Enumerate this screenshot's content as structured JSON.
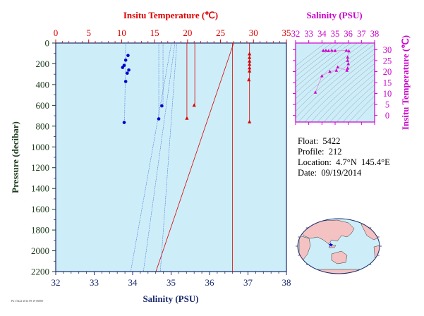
{
  "colors": {
    "plot_bg": "#cdeef8",
    "temperature": "#dd0000",
    "salinity": "#0000cc",
    "ts_axis": "#cc00cc",
    "axis_dark": "#1a2a6c",
    "pressure_label": "#1a3a1a",
    "land": "#f4c2c2",
    "ocean": "#cdeef8"
  },
  "chart_data": [
    {
      "type": "scatter",
      "title": "",
      "xlabel_bottom": "Salinity (PSU)",
      "xlabel_top": "Insitu Temperature (℃)",
      "ylabel": "Pressure (decibar)",
      "salinity_range": [
        32,
        38
      ],
      "temperature_range": [
        0,
        35
      ],
      "pressure_range": [
        0,
        2200
      ],
      "y_inverted": true,
      "grid": false,
      "salinity_ticks": [
        "32",
        "33",
        "34",
        "35",
        "36",
        "37",
        "38"
      ],
      "temperature_ticks": [
        "0",
        "5",
        "10",
        "15",
        "20",
        "25",
        "30",
        "35"
      ],
      "pressure_ticks": [
        "0",
        "200",
        "400",
        "600",
        "800",
        "1000",
        "1200",
        "1400",
        "1600",
        "1800",
        "2000",
        "2200"
      ],
      "series": [
        {
          "variable": "salinity",
          "marker": "circle",
          "points": [
            {
              "x": 33.88,
              "y": 120
            },
            {
              "x": 33.82,
              "y": 165
            },
            {
              "x": 33.78,
              "y": 215
            },
            {
              "x": 33.74,
              "y": 235
            },
            {
              "x": 33.9,
              "y": 260
            },
            {
              "x": 33.86,
              "y": 290
            },
            {
              "x": 33.82,
              "y": 370
            },
            {
              "x": 34.76,
              "y": 605
            },
            {
              "x": 34.68,
              "y": 730
            },
            {
              "x": 33.78,
              "y": 765
            }
          ]
        },
        {
          "variable": "temperature",
          "marker": "triangle",
          "points": [
            {
              "x": 29.4,
              "y": 105
            },
            {
              "x": 29.4,
              "y": 140
            },
            {
              "x": 29.4,
              "y": 175
            },
            {
              "x": 29.4,
              "y": 205
            },
            {
              "x": 29.4,
              "y": 240
            },
            {
              "x": 29.4,
              "y": 270
            },
            {
              "x": 29.3,
              "y": 355
            },
            {
              "x": 21.0,
              "y": 600
            },
            {
              "x": 19.9,
              "y": 725
            },
            {
              "x": 29.4,
              "y": 760
            }
          ]
        }
      ],
      "guide_lines_temperature": [
        {
          "t": [
            27.0,
            15.2
          ],
          "p": [
            0,
            2200
          ]
        },
        {
          "t": [
            26.8,
            26.8
          ],
          "p": [
            0,
            2200
          ]
        },
        {
          "t": [
            21.1,
            21.1
          ],
          "p": [
            0,
            600
          ]
        },
        {
          "t": [
            19.9,
            19.9
          ],
          "p": [
            0,
            725
          ]
        },
        {
          "t": [
            29.4,
            29.4
          ],
          "p": [
            0,
            760
          ]
        }
      ],
      "guide_lines_salinity": [
        {
          "s": [
            35.01,
            33.95
          ],
          "p": [
            0,
            2200
          ]
        },
        {
          "s": [
            35.1,
            34.28
          ],
          "p": [
            0,
            2200
          ]
        },
        {
          "s": [
            35.15,
            34.72
          ],
          "p": [
            0,
            2200
          ]
        },
        {
          "s": [
            34.79,
            34.79
          ],
          "p": [
            0,
            605
          ]
        },
        {
          "s": [
            34.68,
            34.68
          ],
          "p": [
            0,
            730
          ]
        },
        {
          "s": [
            33.82,
            33.79
          ],
          "p": [
            0,
            765
          ]
        }
      ]
    },
    {
      "type": "scatter",
      "title": "",
      "xlabel": "Salinity (PSU)",
      "ylabel": "Insitu Temperature (℃)",
      "salinity_range": [
        32,
        38
      ],
      "temperature_range": [
        -3,
        33
      ],
      "salinity_ticks": [
        "32",
        "33",
        "34",
        "35",
        "36",
        "37",
        "38"
      ],
      "temperature_ticks": [
        "0",
        "5",
        "10",
        "15",
        "20",
        "25",
        "30"
      ],
      "points": [
        {
          "x": 34.1,
          "y": 29.5
        },
        {
          "x": 34.3,
          "y": 29.6
        },
        {
          "x": 34.5,
          "y": 29.4
        },
        {
          "x": 34.75,
          "y": 29.6
        },
        {
          "x": 35.0,
          "y": 29.5
        },
        {
          "x": 35.85,
          "y": 29.6
        },
        {
          "x": 36.05,
          "y": 29.3
        },
        {
          "x": 35.95,
          "y": 26.5
        },
        {
          "x": 35.95,
          "y": 25.0
        },
        {
          "x": 36.0,
          "y": 23.5
        },
        {
          "x": 35.95,
          "y": 21.5
        },
        {
          "x": 35.9,
          "y": 20.5
        },
        {
          "x": 35.2,
          "y": 22.0
        },
        {
          "x": 35.1,
          "y": 20.5
        },
        {
          "x": 34.6,
          "y": 20.0
        },
        {
          "x": 34.0,
          "y": 18.0
        },
        {
          "x": 33.5,
          "y": 10.5
        }
      ]
    }
  ],
  "info": {
    "float": "Float:  5422",
    "profile": "Profile:  212",
    "location": "Location:  4.7°N  145.4°E",
    "date": "Date:  09/19/2014"
  },
  "map": {
    "star_lon": 145.4,
    "star_lat": 4.7
  },
  "footer_text": "Pn1 5422 2014 09.19 00000"
}
